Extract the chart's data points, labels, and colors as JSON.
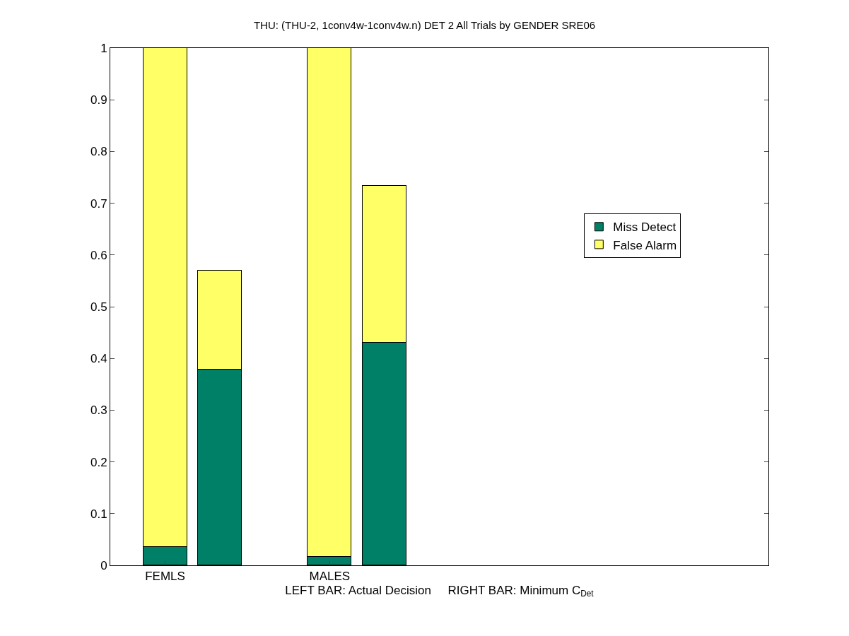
{
  "chart_data": {
    "type": "bar",
    "title": "THU: (THU-2, 1conv4w-1conv4w.n) DET 2 All Trials by GENDER SRE06",
    "xlabel": "LEFT BAR: Actual Decision     RIGHT BAR: Minimum C$_{Det}$",
    "categories": [
      "FEMLS",
      null,
      null,
      "MALES",
      null,
      null,
      null,
      null,
      null,
      null,
      null
    ],
    "stacked": true,
    "series": [
      {
        "name": "Miss Detect",
        "color": "#008066",
        "values": [
          0.036,
          0.378,
          null,
          0.017,
          0.43,
          null,
          null,
          null,
          null,
          null,
          null
        ]
      },
      {
        "name": "False Alarm",
        "color": "#ffff66",
        "values": [
          0.964,
          0.192,
          null,
          0.983,
          0.303,
          null,
          null,
          null,
          null,
          null,
          null
        ]
      }
    ],
    "ylim": [
      0,
      1
    ],
    "yticks": [
      0,
      0.1,
      0.2,
      0.3,
      0.4,
      0.5,
      0.6,
      0.7,
      0.8,
      0.9,
      1
    ],
    "legend": "right"
  }
}
